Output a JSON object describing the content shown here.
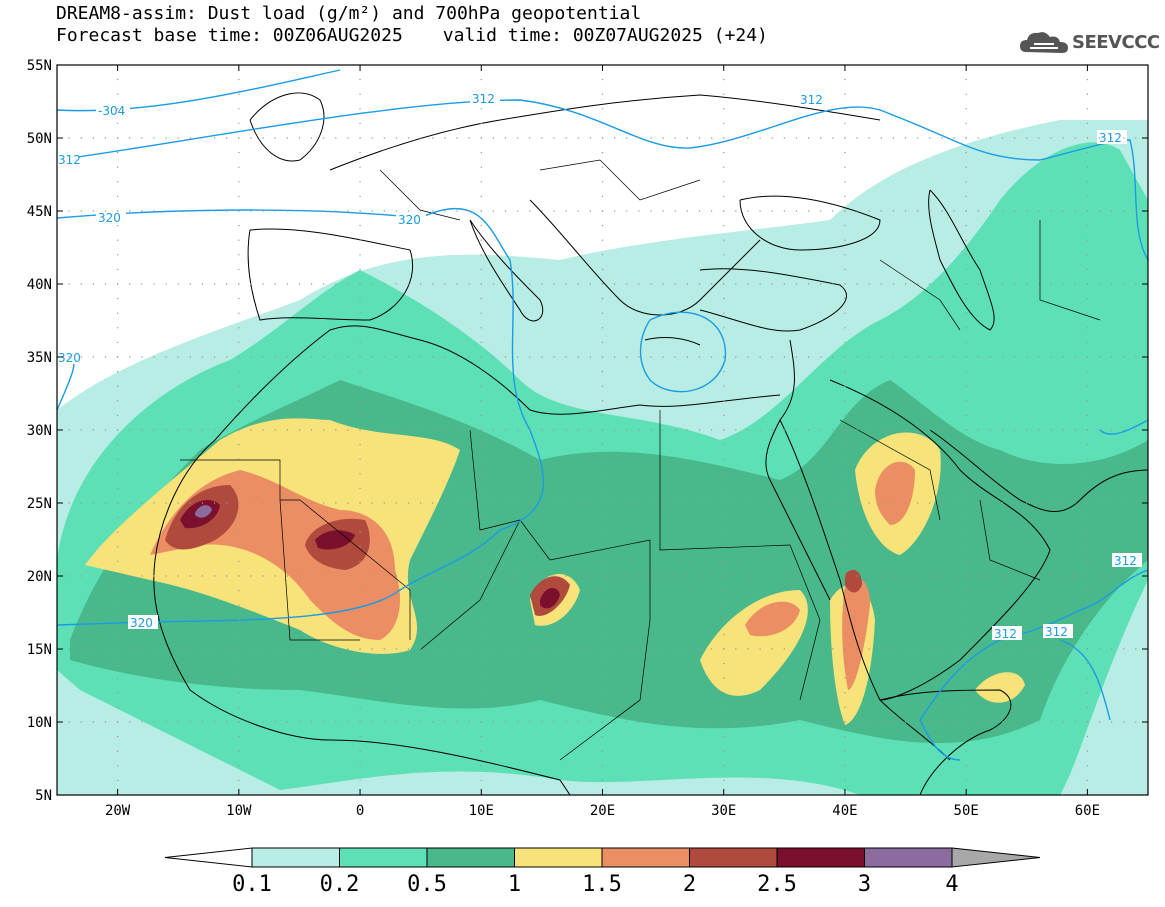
{
  "header": {
    "title_line1": "DREAM8-assim: Dust load (g/m²) and 700hPa geopotential",
    "base_time": "Forecast base time: 00Z06AUG2025",
    "valid_time": "valid time: 00Z07AUG2025 (+24)",
    "logo_text": "SEEVCCC"
  },
  "axes": {
    "lat_labels": [
      "55N",
      "50N",
      "45N",
      "40N",
      "35N",
      "30N",
      "25N",
      "20N",
      "15N",
      "10N",
      "5N"
    ],
    "lon_labels": [
      "20W",
      "10W",
      "0",
      "10E",
      "20E",
      "30E",
      "40E",
      "50E",
      "60E"
    ]
  },
  "contour_labels": [
    "-304",
    "312",
    "312",
    "312",
    "312",
    "320",
    "320",
    "320",
    "320",
    "312",
    "312",
    "312"
  ],
  "legend": {
    "labels": [
      "0.1",
      "0.2",
      "0.5",
      "1",
      "1.5",
      "2",
      "2.5",
      "3",
      "4"
    ],
    "colors": [
      "#ffffff",
      "#b7ede4",
      "#5ee0b6",
      "#49b98b",
      "#f7e37a",
      "#eb8e63",
      "#b04a3c",
      "#7a0f2e",
      "#8c6b9e",
      "#a8a8a8"
    ]
  },
  "map": {
    "lon_range": [
      -25,
      65
    ],
    "lat_range": [
      5,
      55
    ],
    "palette": {
      "land_line": "#000000",
      "contour": "#1a9be6"
    }
  }
}
